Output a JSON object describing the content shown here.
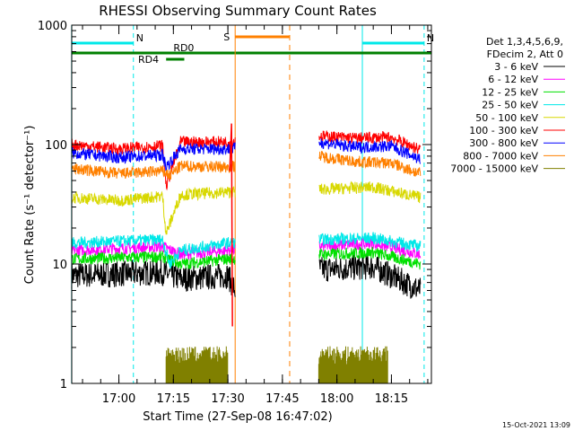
{
  "chart_data": {
    "type": "line",
    "title": "RHESSI Observing Summary Count Rates",
    "xlabel": "Start Time (27-Sep-08 16:47:02)",
    "ylabel": "Count Rate (s⁻¹ detector⁻¹)",
    "y_scale": "log",
    "ylim": [
      1,
      1000
    ],
    "xlim": [
      "16:47:02",
      "18:26:00"
    ],
    "x_ticks": [
      "17:00",
      "17:15",
      "17:30",
      "17:45",
      "18:00",
      "18:15"
    ],
    "y_ticks": [
      "1",
      "10",
      "100",
      "1000"
    ],
    "timestamp": "15-Oct-2021 13:09",
    "legend_header": [
      "Det 1,3,4,5,6,9,",
      "FDecim 2, Att 0"
    ],
    "legend_placement": "right",
    "data_gap": [
      "17:32",
      "17:55"
    ],
    "series": [
      {
        "name": "3 - 6 keV",
        "color": "#000000",
        "points": [
          [
            "16:47",
            8
          ],
          [
            "17:12",
            8.5
          ],
          [
            "17:17",
            7.5
          ],
          [
            "17:30",
            8
          ],
          [
            "17:32",
            6
          ],
          [
            "17:55",
            9
          ],
          [
            "18:10",
            9.5
          ],
          [
            "18:23",
            6
          ]
        ]
      },
      {
        "name": "6 - 12 keV",
        "color": "#ff00ff",
        "points": [
          [
            "16:47",
            13
          ],
          [
            "17:12",
            14
          ],
          [
            "17:17",
            12
          ],
          [
            "17:30",
            13
          ],
          [
            "17:55",
            14
          ],
          [
            "18:10",
            15
          ],
          [
            "18:23",
            12
          ]
        ]
      },
      {
        "name": "12 - 25 keV",
        "color": "#00e000",
        "points": [
          [
            "16:47",
            11
          ],
          [
            "17:12",
            11.5
          ],
          [
            "17:17",
            10
          ],
          [
            "17:30",
            11
          ],
          [
            "17:55",
            12
          ],
          [
            "18:10",
            12.5
          ],
          [
            "18:23",
            10
          ]
        ]
      },
      {
        "name": "25 - 50 keV",
        "color": "#00e8e8",
        "points": [
          [
            "16:47",
            15
          ],
          [
            "17:12",
            16
          ],
          [
            "17:14",
            10
          ],
          [
            "17:17",
            13
          ],
          [
            "17:30",
            15
          ],
          [
            "17:55",
            16
          ],
          [
            "18:10",
            16.5
          ],
          [
            "18:23",
            14
          ]
        ]
      },
      {
        "name": "50 - 100 keV",
        "color": "#d8d800",
        "points": [
          [
            "16:47",
            36
          ],
          [
            "17:00",
            34
          ],
          [
            "17:12",
            37
          ],
          [
            "17:13",
            18
          ],
          [
            "17:17",
            38
          ],
          [
            "17:30",
            40
          ],
          [
            "17:55",
            42
          ],
          [
            "18:10",
            44
          ],
          [
            "18:23",
            36
          ]
        ]
      },
      {
        "name": "100 - 300 keV",
        "color": "#ff0000",
        "points": [
          [
            "16:47",
            100
          ],
          [
            "17:00",
            92
          ],
          [
            "17:12",
            98
          ],
          [
            "17:13",
            45
          ],
          [
            "17:17",
            105
          ],
          [
            "17:30",
            105
          ],
          [
            "17:55",
            118
          ],
          [
            "18:05",
            113
          ],
          [
            "18:15",
            115
          ],
          [
            "18:23",
            90
          ]
        ]
      },
      {
        "name": "300 - 800 keV",
        "color": "#0000ff",
        "points": [
          [
            "16:47",
            85
          ],
          [
            "17:00",
            78
          ],
          [
            "17:12",
            82
          ],
          [
            "17:13",
            65
          ],
          [
            "17:17",
            92
          ],
          [
            "17:30",
            92
          ],
          [
            "17:55",
            105
          ],
          [
            "18:05",
            95
          ],
          [
            "18:15",
            97
          ],
          [
            "18:23",
            75
          ]
        ]
      },
      {
        "name": "800 - 7000 keV",
        "color": "#ff8000",
        "points": [
          [
            "16:47",
            63
          ],
          [
            "17:00",
            57
          ],
          [
            "17:12",
            60
          ],
          [
            "17:14",
            55
          ],
          [
            "17:17",
            66
          ],
          [
            "17:30",
            65
          ],
          [
            "17:55",
            80
          ],
          [
            "18:05",
            72
          ],
          [
            "18:15",
            70
          ],
          [
            "18:23",
            57
          ]
        ]
      },
      {
        "name": "7000 - 15000 keV",
        "color": "#808000",
        "points": [
          [
            "17:13",
            2
          ],
          [
            "17:30",
            2
          ],
          [
            "17:55",
            2
          ],
          [
            "18:14",
            2
          ]
        ]
      }
    ],
    "annotations": [
      {
        "label": "N",
        "type": "night",
        "color": "#00e8e8",
        "from": "16:47",
        "to": "17:04"
      },
      {
        "label": "N",
        "type": "night",
        "color": "#00e8e8",
        "from": "18:07",
        "to": "18:24"
      },
      {
        "label": "RD0",
        "type": "decimation",
        "color": "#008000",
        "from": "16:47",
        "to": "18:26"
      },
      {
        "label": "RD4",
        "type": "decimation",
        "color": "#008000",
        "from": "17:13",
        "to": "17:18"
      },
      {
        "label": "S",
        "type": "saa",
        "color": "#ff8000",
        "from": "17:32",
        "to": "17:47"
      }
    ]
  }
}
